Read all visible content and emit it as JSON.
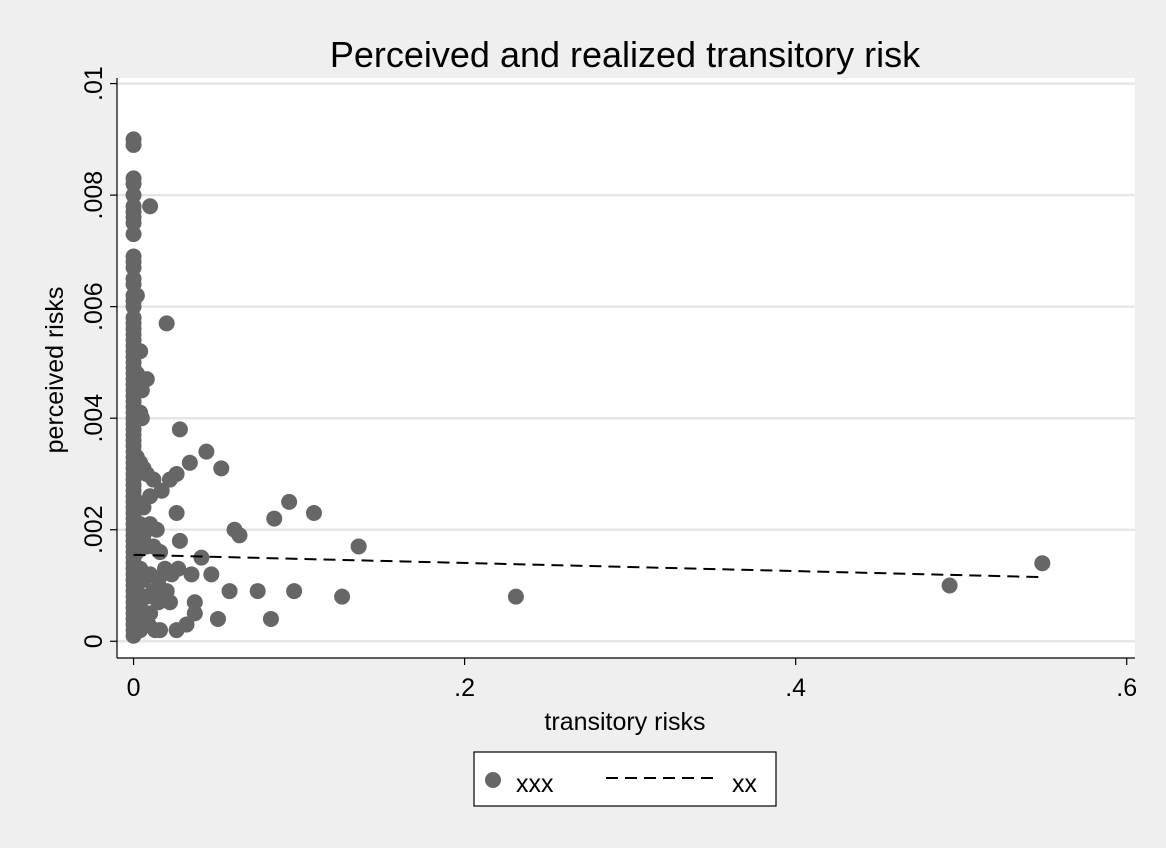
{
  "chart_data": {
    "type": "scatter",
    "title": "Perceived and realized transitory risk",
    "xlabel": "transitory risks",
    "ylabel": "perceived risks",
    "xlim": [
      -0.01,
      0.605
    ],
    "ylim": [
      -0.0003,
      0.0101
    ],
    "x_ticks": [
      {
        "value": 0,
        "label": "0"
      },
      {
        "value": 0.2,
        "label": ".2"
      },
      {
        "value": 0.4,
        "label": ".4"
      },
      {
        "value": 0.6,
        "label": ".6"
      }
    ],
    "y_ticks": [
      {
        "value": 0,
        "label": "0"
      },
      {
        "value": 0.002,
        "label": ".002"
      },
      {
        "value": 0.004,
        "label": ".004"
      },
      {
        "value": 0.006,
        "label": ".006"
      },
      {
        "value": 0.008,
        "label": ".008"
      },
      {
        "value": 0.01,
        "label": ".01"
      }
    ],
    "grid": true,
    "legend_position": "bottom",
    "colors": {
      "points": "#666666",
      "line": "#000000",
      "plot_bg": "#ffffff",
      "page_bg": "#efefef",
      "grid": "#e6e6e6"
    },
    "series": [
      {
        "name": "xxx",
        "type": "scatter",
        "points": [
          [
            0,
            0.009
          ],
          [
            0,
            0.0089
          ],
          [
            0,
            0.0083
          ],
          [
            0,
            0.0082
          ],
          [
            0,
            0.008
          ],
          [
            0,
            0.0078
          ],
          [
            0,
            0.0077
          ],
          [
            0,
            0.0076
          ],
          [
            0,
            0.0075
          ],
          [
            0,
            0.0073
          ],
          [
            0,
            0.0069
          ],
          [
            0,
            0.0068
          ],
          [
            0,
            0.0067
          ],
          [
            0,
            0.0065
          ],
          [
            0,
            0.0064
          ],
          [
            0,
            0.0062
          ],
          [
            0,
            0.0061
          ],
          [
            0,
            0.006
          ],
          [
            0,
            0.0058
          ],
          [
            0,
            0.0057
          ],
          [
            0,
            0.0056
          ],
          [
            0,
            0.0055
          ],
          [
            0,
            0.0054
          ],
          [
            0,
            0.0053
          ],
          [
            0,
            0.0052
          ],
          [
            0,
            0.0051
          ],
          [
            0,
            0.005
          ],
          [
            0,
            0.0049
          ],
          [
            0,
            0.0048
          ],
          [
            0,
            0.0047
          ],
          [
            0,
            0.0046
          ],
          [
            0,
            0.0045
          ],
          [
            0,
            0.0044
          ],
          [
            0,
            0.0043
          ],
          [
            0,
            0.0042
          ],
          [
            0,
            0.0041
          ],
          [
            0,
            0.004
          ],
          [
            0,
            0.0039
          ],
          [
            0,
            0.0038
          ],
          [
            0,
            0.0037
          ],
          [
            0,
            0.0036
          ],
          [
            0,
            0.0035
          ],
          [
            0,
            0.0034
          ],
          [
            0,
            0.0033
          ],
          [
            0,
            0.0032
          ],
          [
            0,
            0.0031
          ],
          [
            0,
            0.003
          ],
          [
            0,
            0.0029
          ],
          [
            0,
            0.0028
          ],
          [
            0,
            0.0027
          ],
          [
            0,
            0.0026
          ],
          [
            0,
            0.0025
          ],
          [
            0,
            0.0024
          ],
          [
            0,
            0.0023
          ],
          [
            0,
            0.0022
          ],
          [
            0,
            0.0021
          ],
          [
            0,
            0.002
          ],
          [
            0,
            0.0019
          ],
          [
            0,
            0.0018
          ],
          [
            0,
            0.0017
          ],
          [
            0,
            0.0016
          ],
          [
            0,
            0.0015
          ],
          [
            0,
            0.0014
          ],
          [
            0,
            0.0013
          ],
          [
            0,
            0.0012
          ],
          [
            0,
            0.0011
          ],
          [
            0,
            0.001
          ],
          [
            0,
            0.0009
          ],
          [
            0,
            0.0008
          ],
          [
            0,
            0.0007
          ],
          [
            0,
            0.0006
          ],
          [
            0,
            0.0005
          ],
          [
            0,
            0.0004
          ],
          [
            0,
            0.0003
          ],
          [
            0,
            0.0002
          ],
          [
            0,
            0.0001
          ],
          [
            0.002,
            0.0062
          ],
          [
            0.002,
            0.0048
          ],
          [
            0.002,
            0.0033
          ],
          [
            0.002,
            0.0025
          ],
          [
            0.002,
            0.0016
          ],
          [
            0.002,
            0.0009
          ],
          [
            0.002,
            0.0004
          ],
          [
            0.004,
            0.0052
          ],
          [
            0.004,
            0.0041
          ],
          [
            0.004,
            0.0032
          ],
          [
            0.004,
            0.0021
          ],
          [
            0.004,
            0.0013
          ],
          [
            0.004,
            0.0006
          ],
          [
            0.004,
            0.0002
          ],
          [
            0.005,
            0.0045
          ],
          [
            0.005,
            0.004
          ],
          [
            0.006,
            0.0031
          ],
          [
            0.006,
            0.0024
          ],
          [
            0.006,
            0.0019
          ],
          [
            0.006,
            0.0011
          ],
          [
            0.006,
            0.0003
          ],
          [
            0.008,
            0.0047
          ],
          [
            0.008,
            0.003
          ],
          [
            0.008,
            0.0017
          ],
          [
            0.008,
            0.0008
          ],
          [
            0.009,
            0.0003
          ],
          [
            0.01,
            0.0078
          ],
          [
            0.01,
            0.0026
          ],
          [
            0.01,
            0.0021
          ],
          [
            0.01,
            0.0012
          ],
          [
            0.01,
            0.0005
          ],
          [
            0.012,
            0.0029
          ],
          [
            0.012,
            0.0017
          ],
          [
            0.012,
            0.0009
          ],
          [
            0.013,
            0.0002
          ],
          [
            0.014,
            0.002
          ],
          [
            0.015,
            0.0011
          ],
          [
            0.015,
            0.0007
          ],
          [
            0.016,
            0.0016
          ],
          [
            0.016,
            0.0002
          ],
          [
            0.017,
            0.0027
          ],
          [
            0.019,
            0.0013
          ],
          [
            0.02,
            0.0057
          ],
          [
            0.02,
            0.0009
          ],
          [
            0.022,
            0.0029
          ],
          [
            0.022,
            0.0007
          ],
          [
            0.023,
            0.0012
          ],
          [
            0.026,
            0.003
          ],
          [
            0.026,
            0.0023
          ],
          [
            0.026,
            0.0002
          ],
          [
            0.027,
            0.0013
          ],
          [
            0.028,
            0.0038
          ],
          [
            0.028,
            0.0018
          ],
          [
            0.032,
            0.0003
          ],
          [
            0.034,
            0.0032
          ],
          [
            0.035,
            0.0012
          ],
          [
            0.037,
            0.0007
          ],
          [
            0.037,
            0.0005
          ],
          [
            0.041,
            0.0015
          ],
          [
            0.044,
            0.0034
          ],
          [
            0.047,
            0.0012
          ],
          [
            0.051,
            0.0004
          ],
          [
            0.053,
            0.0031
          ],
          [
            0.058,
            0.0009
          ],
          [
            0.061,
            0.002
          ],
          [
            0.064,
            0.0019
          ],
          [
            0.075,
            0.0009
          ],
          [
            0.083,
            0.0004
          ],
          [
            0.085,
            0.0022
          ],
          [
            0.094,
            0.0025
          ],
          [
            0.097,
            0.0009
          ],
          [
            0.109,
            0.0023
          ],
          [
            0.126,
            0.0008
          ],
          [
            0.136,
            0.0017
          ],
          [
            0.231,
            0.0008
          ],
          [
            0.493,
            0.001
          ],
          [
            0.549,
            0.0014
          ]
        ]
      },
      {
        "name": "xx",
        "type": "line",
        "dash": true,
        "points": [
          [
            0,
            0.00155
          ],
          [
            0.549,
            0.00115
          ]
        ]
      }
    ]
  }
}
